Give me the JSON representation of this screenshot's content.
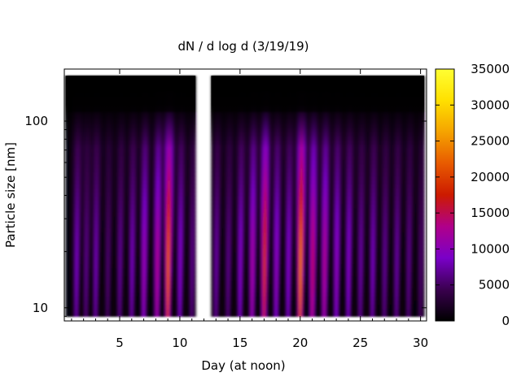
{
  "chart_data": {
    "type": "heatmap",
    "title": "dN / d log d (3/19/19)",
    "xlabel": "Day (at noon)",
    "ylabel": "Particle size [nm]",
    "x_ticks": [
      5,
      10,
      15,
      20,
      25,
      30
    ],
    "y_ticks": [
      10,
      100
    ],
    "xlim": [
      0.4,
      30.5
    ],
    "ylim": [
      8.5,
      190
    ],
    "y_scale": "log",
    "colorbar": {
      "ticks": [
        0,
        5000,
        10000,
        15000,
        20000,
        25000,
        30000,
        35000
      ],
      "range": [
        0,
        35000
      ],
      "palette": [
        "#000000",
        "#3a004f",
        "#7a00c8",
        "#b0008a",
        "#cc1a00",
        "#e85a00",
        "#f5a300",
        "#ffe000",
        "#ffff33"
      ]
    },
    "data_x_range": [
      [
        0.5,
        11.3
      ],
      [
        12.6,
        30.3
      ]
    ],
    "data_y_range": [
      9,
      175
    ],
    "gap_x": [
      11.3,
      12.6
    ],
    "bursts": [
      {
        "day": 1.4,
        "peak": 8000
      },
      {
        "day": 2.2,
        "peak": 6000
      },
      {
        "day": 3.0,
        "peak": 7500
      },
      {
        "day": 4.0,
        "peak": 5000
      },
      {
        "day": 5.0,
        "peak": 6500
      },
      {
        "day": 6.0,
        "peak": 8000
      },
      {
        "day": 7.0,
        "peak": 11000
      },
      {
        "day": 8.1,
        "peak": 13000
      },
      {
        "day": 9.0,
        "peak": 22000
      },
      {
        "day": 10.0,
        "peak": 9000
      },
      {
        "day": 11.0,
        "peak": 6000
      },
      {
        "day": 13.0,
        "peak": 7000
      },
      {
        "day": 14.0,
        "peak": 6000
      },
      {
        "day": 15.0,
        "peak": 9000
      },
      {
        "day": 16.0,
        "peak": 12000
      },
      {
        "day": 17.0,
        "peak": 19000
      },
      {
        "day": 18.0,
        "peak": 10000
      },
      {
        "day": 19.0,
        "peak": 9000
      },
      {
        "day": 20.0,
        "peak": 24000
      },
      {
        "day": 21.0,
        "peak": 15000
      },
      {
        "day": 22.0,
        "peak": 13000
      },
      {
        "day": 23.0,
        "peak": 10000
      },
      {
        "day": 24.0,
        "peak": 9000
      },
      {
        "day": 25.0,
        "peak": 7000
      },
      {
        "day": 26.0,
        "peak": 8000
      },
      {
        "day": 27.0,
        "peak": 6500
      },
      {
        "day": 28.0,
        "peak": 7000
      },
      {
        "day": 29.0,
        "peak": 6000
      },
      {
        "day": 30.0,
        "peak": 5000
      }
    ]
  }
}
